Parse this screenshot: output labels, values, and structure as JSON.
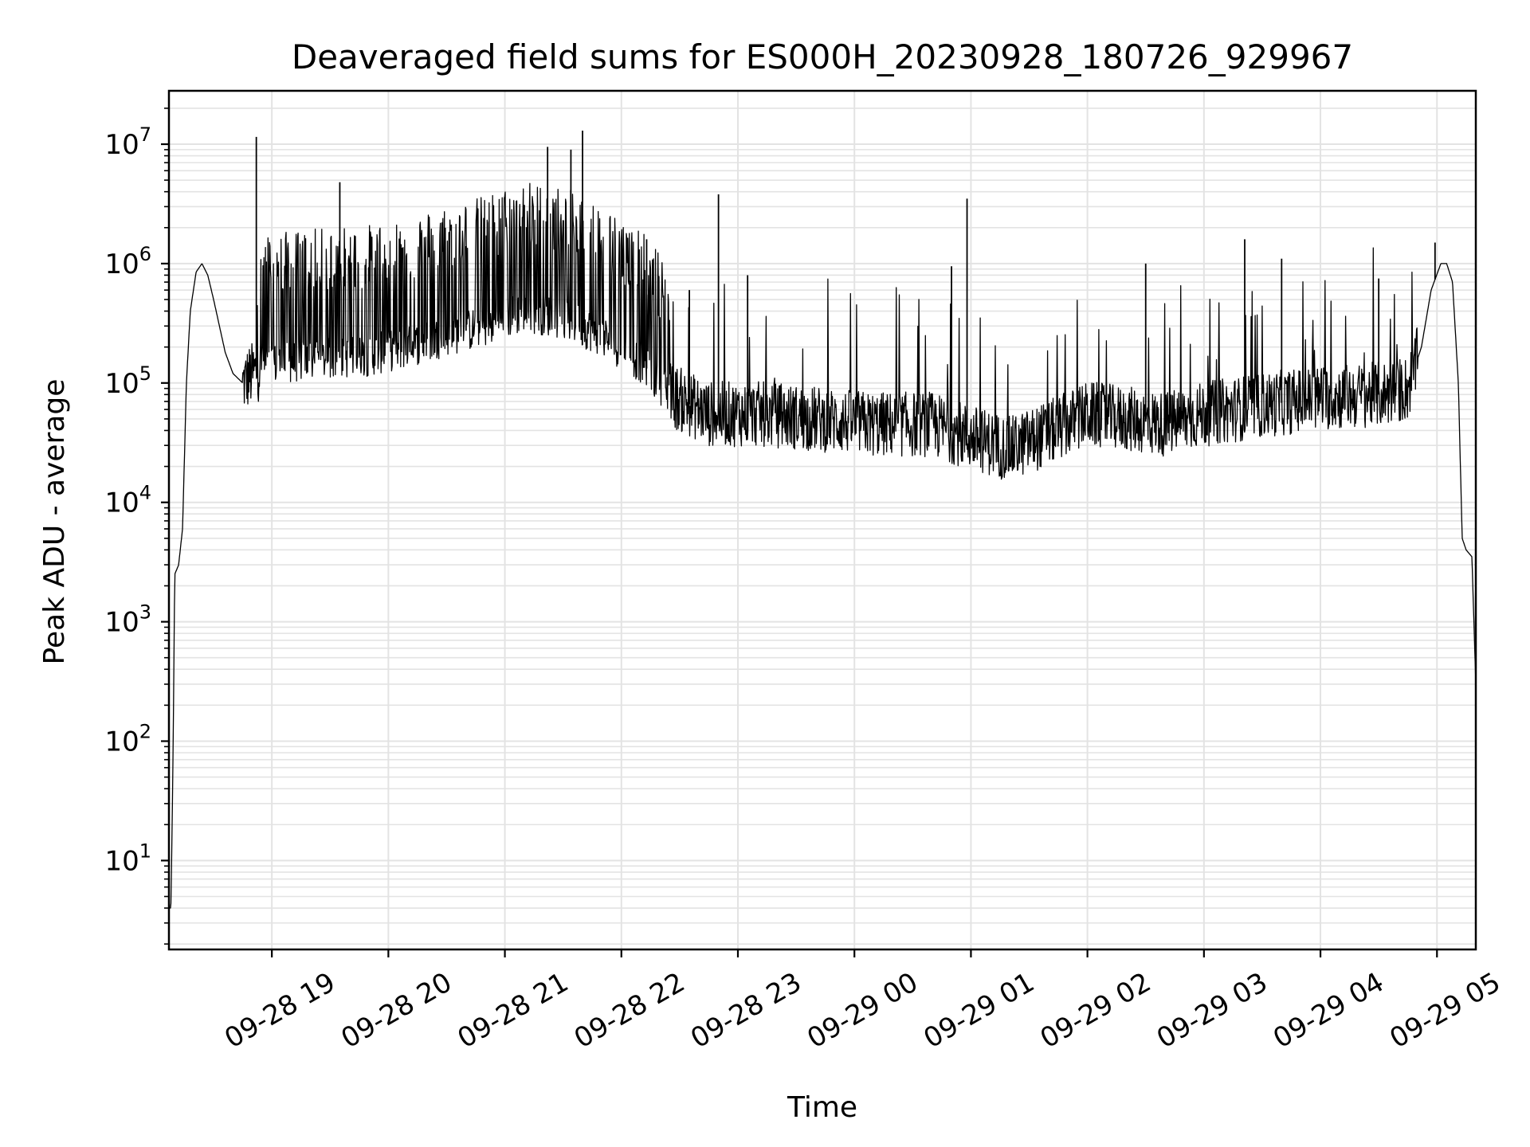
{
  "chart_data": {
    "type": "line",
    "title": "Deaveraged field sums for ES000H_20230928_180726_929967",
    "xlabel": "Time",
    "ylabel": "Peak ADU - average",
    "yscale": "log",
    "ylim": [
      1.8,
      28000000
    ],
    "xlim": [
      "2023-09-28 18:07",
      "2023-09-29 05:20"
    ],
    "grid": true,
    "line_color": "#000000",
    "grid_color": "#e3e3e3",
    "x_ticks": [
      {
        "time": "2023-09-28 19:00",
        "label": "09-28 19"
      },
      {
        "time": "2023-09-28 20:00",
        "label": "09-28 20"
      },
      {
        "time": "2023-09-28 21:00",
        "label": "09-28 21"
      },
      {
        "time": "2023-09-28 22:00",
        "label": "09-28 22"
      },
      {
        "time": "2023-09-28 23:00",
        "label": "09-28 23"
      },
      {
        "time": "2023-09-29 00:00",
        "label": "09-29 00"
      },
      {
        "time": "2023-09-29 01:00",
        "label": "09-29 01"
      },
      {
        "time": "2023-09-29 02:00",
        "label": "09-29 02"
      },
      {
        "time": "2023-09-29 03:00",
        "label": "09-29 03"
      },
      {
        "time": "2023-09-29 04:00",
        "label": "09-29 04"
      },
      {
        "time": "2023-09-29 05:00",
        "label": "09-29 05"
      }
    ],
    "y_ticks": [
      {
        "value": 10,
        "base": "10",
        "exp": "1"
      },
      {
        "value": 100,
        "base": "10",
        "exp": "2"
      },
      {
        "value": 1000,
        "base": "10",
        "exp": "3"
      },
      {
        "value": 10000,
        "base": "10",
        "exp": "4"
      },
      {
        "value": 100000,
        "base": "10",
        "exp": "5"
      },
      {
        "value": 1000000,
        "base": "10",
        "exp": "6"
      },
      {
        "value": 10000000,
        "base": "10",
        "exp": "7"
      }
    ],
    "series": [
      {
        "points": [
          [
            "2023-09-28 18:07",
            4
          ],
          [
            "2023-09-28 18:08",
            4
          ],
          [
            "2023-09-28 18:09",
            50
          ],
          [
            "2023-09-28 18:10",
            2500
          ],
          [
            "2023-09-28 18:12",
            3000
          ],
          [
            "2023-09-28 18:14",
            6000
          ],
          [
            "2023-09-28 18:16",
            100000
          ],
          [
            "2023-09-28 18:18",
            400000
          ],
          [
            "2023-09-28 18:21",
            850000
          ],
          [
            "2023-09-28 18:24",
            1000000
          ],
          [
            "2023-09-28 18:27",
            800000
          ],
          [
            "2023-09-28 18:30",
            500000
          ],
          [
            "2023-09-28 18:33",
            300000
          ],
          [
            "2023-09-28 18:36",
            180000
          ],
          [
            "2023-09-28 18:40",
            120000
          ],
          [
            "2023-09-28 18:45",
            100000
          ],
          [
            "2023-09-28 18:55",
            140000
          ],
          [
            "2023-09-28 19:10",
            150000
          ],
          [
            "2023-09-28 19:30",
            160000
          ],
          [
            "2023-09-28 19:50",
            170000
          ],
          [
            "2023-09-28 20:10",
            200000
          ],
          [
            "2023-09-28 20:30",
            250000
          ],
          [
            "2023-09-28 20:50",
            300000
          ],
          [
            "2023-09-28 21:10",
            400000
          ],
          [
            "2023-09-28 21:30",
            350000
          ],
          [
            "2023-09-28 21:50",
            250000
          ],
          [
            "2023-09-28 22:10",
            150000
          ],
          [
            "2023-09-28 22:25",
            80000
          ],
          [
            "2023-09-28 22:45",
            55000
          ],
          [
            "2023-09-28 23:10",
            55000
          ],
          [
            "2023-09-28 23:40",
            50000
          ],
          [
            "2023-09-29 00:10",
            45000
          ],
          [
            "2023-09-29 00:40",
            45000
          ],
          [
            "2023-09-29 01:00",
            35000
          ],
          [
            "2023-09-29 01:20",
            28000
          ],
          [
            "2023-09-29 01:40",
            38000
          ],
          [
            "2023-09-29 02:00",
            55000
          ],
          [
            "2023-09-29 02:20",
            50000
          ],
          [
            "2023-09-29 02:40",
            45000
          ],
          [
            "2023-09-29 03:00",
            55000
          ],
          [
            "2023-09-29 03:30",
            65000
          ],
          [
            "2023-09-29 04:00",
            75000
          ],
          [
            "2023-09-29 04:30",
            80000
          ],
          [
            "2023-09-29 04:45",
            90000
          ],
          [
            "2023-09-29 04:52",
            200000
          ],
          [
            "2023-09-29 04:57",
            600000
          ],
          [
            "2023-09-29 05:02",
            1000000
          ],
          [
            "2023-09-29 05:05",
            1000000
          ],
          [
            "2023-09-29 05:08",
            700000
          ],
          [
            "2023-09-29 05:11",
            100000
          ],
          [
            "2023-09-29 05:13",
            5000
          ],
          [
            "2023-09-29 05:15",
            4000
          ],
          [
            "2023-09-29 05:18",
            3500
          ],
          [
            "2023-09-29 05:20",
            300
          ]
        ],
        "spikes": [
          [
            "2023-09-28 18:52",
            11500000
          ],
          [
            "2023-09-28 19:35",
            4800000
          ],
          [
            "2023-09-28 20:17",
            1800000
          ],
          [
            "2023-09-28 20:40",
            1400000
          ],
          [
            "2023-09-28 21:10",
            3100000
          ],
          [
            "2023-09-28 21:22",
            9500000
          ],
          [
            "2023-09-28 21:34",
            9000000
          ],
          [
            "2023-09-28 21:40",
            13000000
          ],
          [
            "2023-09-28 22:13",
            1600000
          ],
          [
            "2023-09-28 22:50",
            3800000
          ],
          [
            "2023-09-29 00:50",
            950000
          ],
          [
            "2023-09-28 23:05",
            800000
          ],
          [
            "2023-09-28 22:35",
            600000
          ],
          [
            "2023-09-29 00:58",
            3500000
          ],
          [
            "2023-09-29 02:30",
            1000000
          ],
          [
            "2023-09-29 03:21",
            1600000
          ],
          [
            "2023-09-29 03:40",
            1100000
          ],
          [
            "2023-09-29 04:30",
            750000
          ],
          [
            "2023-09-29 04:59",
            1500000
          ]
        ]
      }
    ]
  }
}
